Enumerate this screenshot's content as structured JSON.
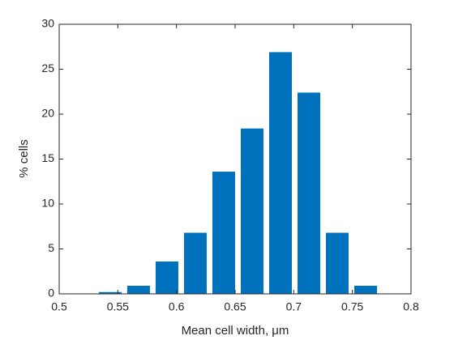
{
  "chart_data": {
    "type": "bar",
    "x": [
      0.5435,
      0.5677,
      0.5919,
      0.6161,
      0.6403,
      0.6645,
      0.6887,
      0.7129,
      0.7371,
      0.7613
    ],
    "values": [
      0.2,
      0.9,
      3.6,
      6.8,
      13.6,
      18.4,
      26.9,
      22.4,
      6.8,
      0.9
    ],
    "color": "#0072bd",
    "xlabel": "Mean cell width, μm",
    "ylabel": "% cells",
    "xlim": [
      0.5,
      0.8
    ],
    "xticks": [
      0.5,
      0.55,
      0.6,
      0.65,
      0.7,
      0.75,
      0.8
    ],
    "ylim": [
      0,
      30
    ],
    "yticks": [
      0,
      5,
      10,
      15,
      20,
      25,
      30
    ],
    "grid": false
  }
}
